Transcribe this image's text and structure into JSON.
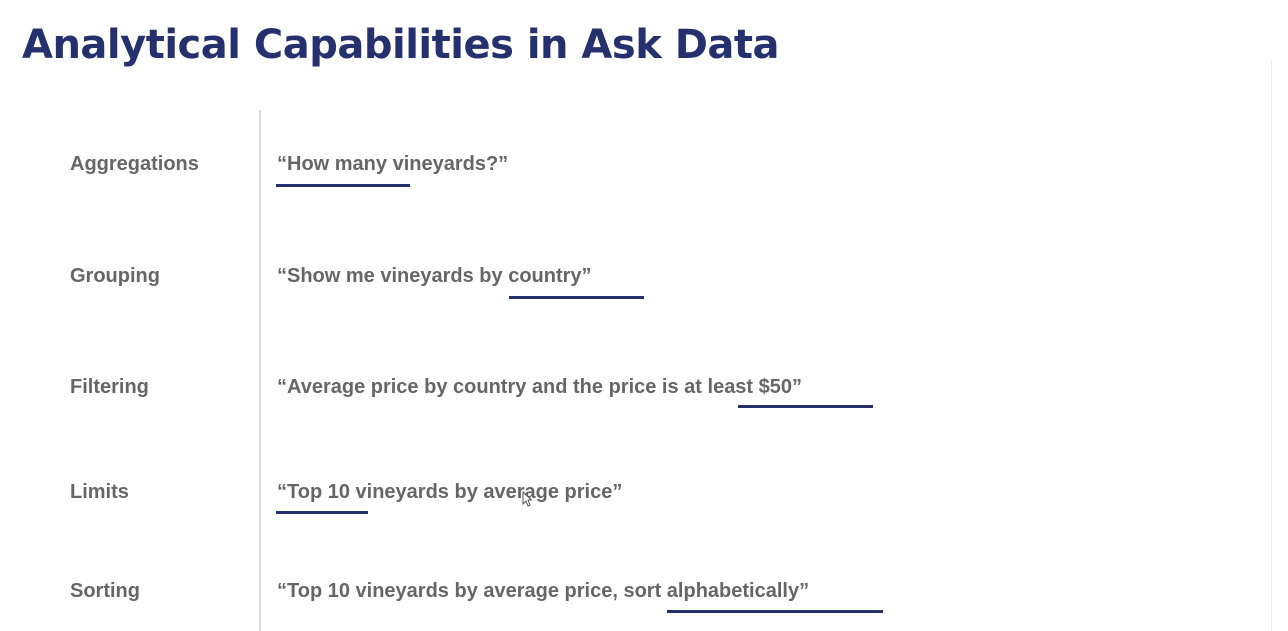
{
  "slide": {
    "title": "Analytical Capabilities in Ask Data",
    "accent_color": "#25306e",
    "text_color": "#666666",
    "rows": [
      {
        "label": "Aggregations",
        "example": "“How many vineyards?”",
        "highlighted": "How many"
      },
      {
        "label": "Grouping",
        "example": "“Show me vineyards by country”",
        "highlighted": "by country"
      },
      {
        "label": "Filtering",
        "example": "“Average price by country and the price is at least $50”",
        "highlighted": "at least $50"
      },
      {
        "label": "Limits",
        "example": "“Top 10 vineyards by average price”",
        "highlighted": "Top 10"
      },
      {
        "label": "Sorting",
        "example": "“Top 10 vineyards by average price, sort alphabetically”",
        "highlighted": "sort alphabetically"
      }
    ]
  },
  "icons": {
    "cursor": "mouse-pointer-icon"
  }
}
